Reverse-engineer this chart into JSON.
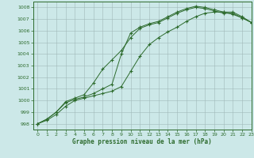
{
  "title": "Graphe pression niveau de la mer (hPa)",
  "background_color": "#cce8e8",
  "grid_color": "#a0b8b8",
  "line_color": "#2d6b2d",
  "xlim": [
    -0.5,
    23
  ],
  "ylim": [
    997.5,
    1008.5
  ],
  "yticks": [
    998,
    999,
    1000,
    1001,
    1002,
    1003,
    1004,
    1005,
    1006,
    1007,
    1008
  ],
  "xticks": [
    0,
    1,
    2,
    3,
    4,
    5,
    6,
    7,
    8,
    9,
    10,
    11,
    12,
    13,
    14,
    15,
    16,
    17,
    18,
    19,
    20,
    21,
    22,
    23
  ],
  "series1_x": [
    0,
    1,
    2,
    3,
    4,
    5,
    6,
    7,
    8,
    9,
    10,
    11,
    12,
    13,
    14,
    15,
    16,
    17,
    18,
    19,
    20,
    21,
    22,
    23
  ],
  "series1_y": [
    998.0,
    998.4,
    999.0,
    999.9,
    1000.2,
    1000.5,
    1001.5,
    1002.7,
    1003.5,
    1004.3,
    1005.4,
    1006.2,
    1006.5,
    1006.7,
    1007.1,
    1007.5,
    1007.8,
    1008.0,
    1007.9,
    1007.7,
    1007.5,
    1007.5,
    1007.1,
    1006.7
  ],
  "series2_x": [
    0,
    1,
    2,
    3,
    4,
    5,
    6,
    7,
    8,
    9,
    10,
    11,
    12,
    13,
    14,
    15,
    16,
    17,
    18,
    19,
    20,
    21,
    22,
    23
  ],
  "series2_y": [
    998.0,
    998.4,
    999.0,
    999.8,
    1000.1,
    1000.3,
    1000.6,
    1001.0,
    1001.4,
    1004.0,
    1005.8,
    1006.3,
    1006.6,
    1006.8,
    1007.2,
    1007.6,
    1007.9,
    1008.1,
    1008.0,
    1007.8,
    1007.6,
    1007.6,
    1007.2,
    1006.7
  ],
  "series3_x": [
    0,
    1,
    2,
    3,
    4,
    5,
    6,
    7,
    8,
    9,
    10,
    11,
    12,
    13,
    14,
    15,
    16,
    17,
    18,
    19,
    20,
    21,
    22,
    23
  ],
  "series3_y": [
    998.0,
    998.3,
    998.8,
    999.5,
    1000.0,
    1000.2,
    1000.4,
    1000.6,
    1000.8,
    1001.2,
    1002.5,
    1003.8,
    1004.8,
    1005.4,
    1005.9,
    1006.3,
    1006.8,
    1007.2,
    1007.5,
    1007.6,
    1007.6,
    1007.4,
    1007.1,
    1006.7
  ]
}
